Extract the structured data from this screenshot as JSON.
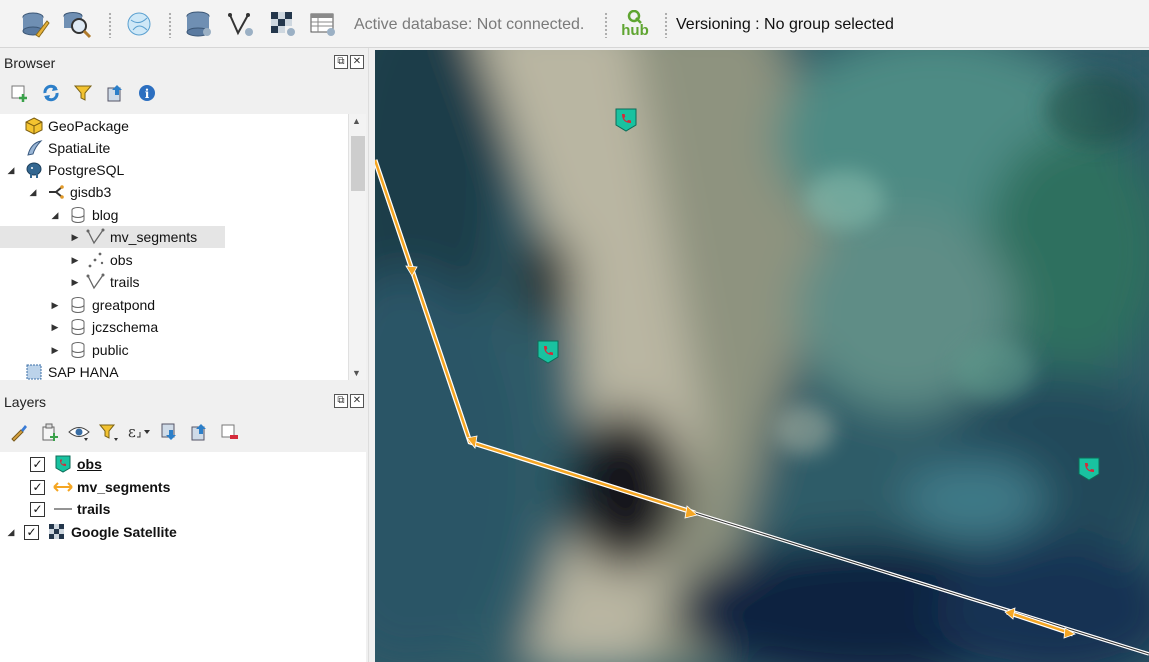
{
  "toolbar": {
    "active_database": "Active database: Not connected.",
    "hub_label": "hub",
    "versioning": "Versioning : No group selected",
    "buttons": [
      "db-manager-icon",
      "search-icon",
      "globe-icon",
      "add-db-layer-icon",
      "add-vector-icon",
      "add-raster-icon",
      "attribute-table-icon"
    ]
  },
  "browser": {
    "title": "Browser",
    "tools": [
      "add-selected-layers-icon",
      "refresh-icon",
      "filter-icon",
      "collapse-all-icon",
      "info-icon"
    ],
    "items": [
      {
        "label": "GeoPackage",
        "icon": "geopackage-icon"
      },
      {
        "label": "SpatiaLite",
        "icon": "spatialite-icon"
      },
      {
        "label": "PostgreSQL",
        "icon": "postgresql-icon"
      },
      {
        "label": "gisdb3",
        "icon": "connection-icon"
      },
      {
        "label": "blog",
        "icon": "schema-icon"
      },
      {
        "label": "mv_segments",
        "icon": "line-layer-icon"
      },
      {
        "label": "obs",
        "icon": "point-layer-icon"
      },
      {
        "label": "trails",
        "icon": "line-layer-icon"
      },
      {
        "label": "greatpond",
        "icon": "schema-icon"
      },
      {
        "label": "jczschema",
        "icon": "schema-icon"
      },
      {
        "label": "public",
        "icon": "schema-icon"
      },
      {
        "label": "SAP HANA",
        "icon": "sap-hana-icon"
      }
    ]
  },
  "layers": {
    "title": "Layers",
    "tools": [
      "style-icon",
      "add-group-icon",
      "visibility-icon",
      "filter-legend-icon",
      "expression-filter-icon",
      "expand-all-icon",
      "collapse-all-icon",
      "remove-layer-icon"
    ],
    "items": [
      {
        "label": "obs",
        "checked": true,
        "icon": "phone-marker-icon"
      },
      {
        "label": "mv_segments",
        "checked": true,
        "icon": "double-arrow-icon"
      },
      {
        "label": "trails",
        "checked": true,
        "icon": "line-icon"
      },
      {
        "label": "Google Satellite",
        "checked": true,
        "icon": "raster-icon"
      }
    ]
  },
  "colors": {
    "segment_orange": "#f5a623",
    "marker_teal": "#19c2a0",
    "phone_red": "#d42a3a"
  }
}
